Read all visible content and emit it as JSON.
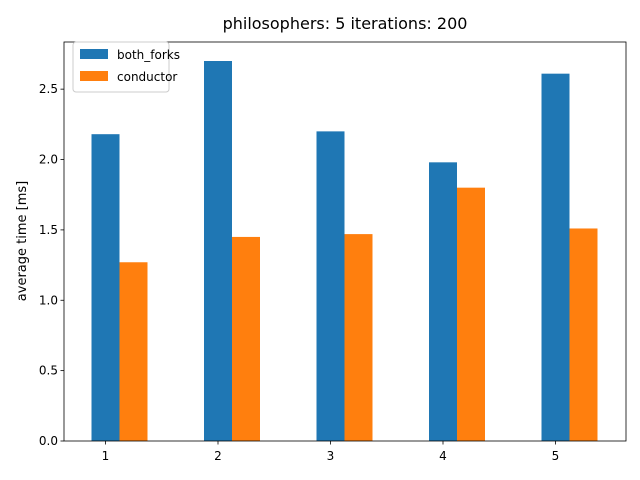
{
  "chart_data": {
    "type": "bar",
    "title": "philosophers: 5   iterations: 200",
    "xlabel": "",
    "ylabel": "average time [ms]",
    "categories": [
      "1",
      "2",
      "3",
      "4",
      "5"
    ],
    "ylim": [
      0,
      2.835
    ],
    "yticks": [
      0.0,
      0.5,
      1.0,
      1.5,
      2.0,
      2.5
    ],
    "ytick_labels": [
      "0.0",
      "0.5",
      "1.0",
      "1.5",
      "2.0",
      "2.5"
    ],
    "legend_position": "top-left",
    "grid": false,
    "series": [
      {
        "name": "both_forks",
        "color": "#1f77b4",
        "values": [
          2.18,
          2.7,
          2.2,
          1.98,
          2.61
        ]
      },
      {
        "name": "conductor",
        "color": "#ff7f0e",
        "values": [
          1.27,
          1.45,
          1.47,
          1.8,
          1.51
        ]
      }
    ]
  }
}
